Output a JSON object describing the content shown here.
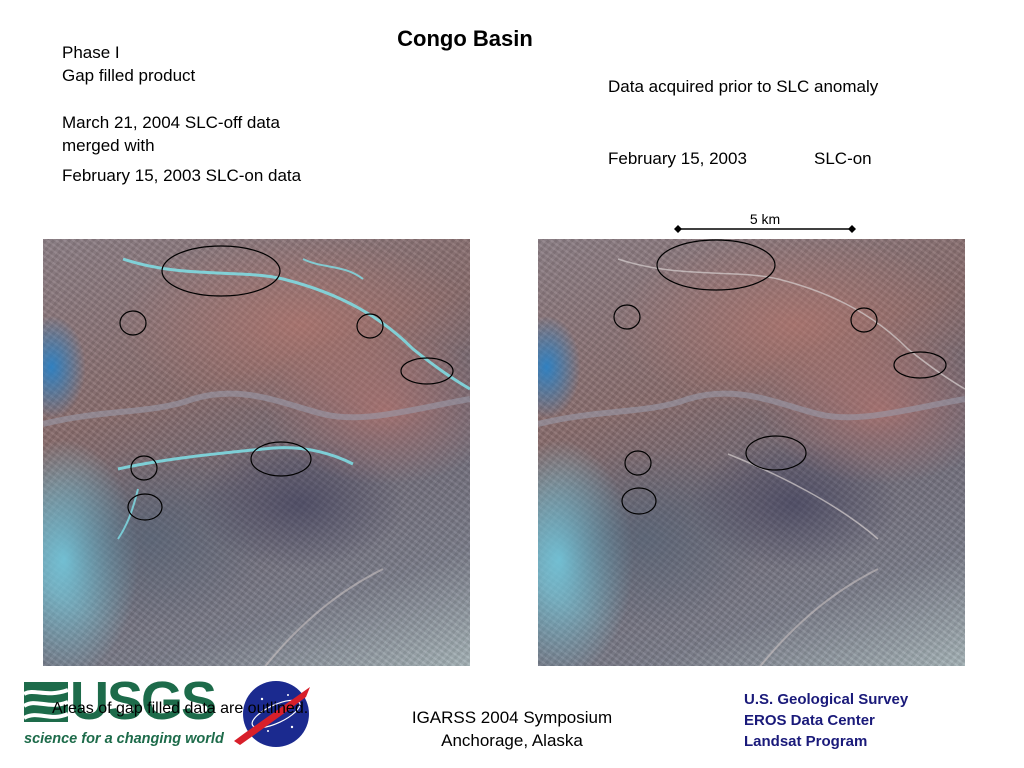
{
  "title": "Congo Basin",
  "left_panel": {
    "line1": "Phase I",
    "line2": "Gap filled product",
    "line3": "March 21, 2004 SLC-off data",
    "line4": "merged with",
    "line5": "February 15, 2003 SLC-on data"
  },
  "right_panel": {
    "line1": "Data acquired prior to SLC anomaly",
    "date": "February 15, 2003",
    "mode": "SLC-on"
  },
  "scale_bar": {
    "label": "5 km"
  },
  "caption": "Areas of gap filled data are outlined.",
  "symposium": {
    "line1": "IGARSS 2004 Symposium",
    "line2": "Anchorage, Alaska"
  },
  "agency": {
    "line1": "U.S. Geological Survey",
    "line2": "EROS Data Center",
    "line3": "Landsat Program"
  },
  "usgs_logo": {
    "wordmark": "USGS",
    "tagline": "science for a changing world"
  },
  "colors": {
    "usgs_green": "#1d6b4a",
    "agency_blue": "#1a1a7a"
  }
}
